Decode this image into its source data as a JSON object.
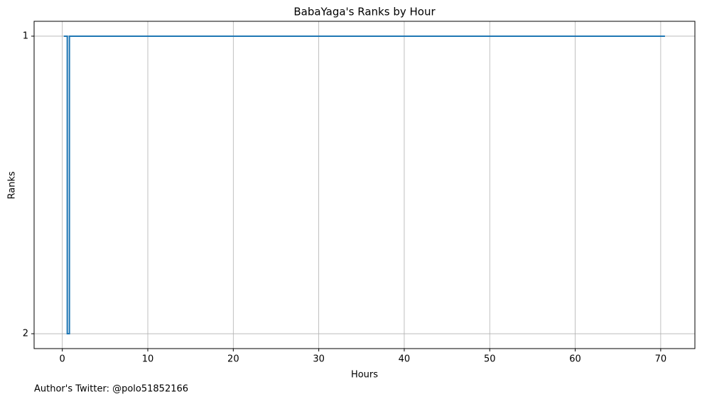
{
  "chart_data": {
    "type": "line",
    "title": "BabaYaga's Ranks by Hour",
    "x_label": "Hours",
    "y_label": "Ranks",
    "footnote": "Author's Twitter: @polo51852166",
    "x": [
      0.17,
      0.58,
      0.58,
      0.83,
      0.83,
      70.5
    ],
    "series": [
      {
        "name": "BabaYaga",
        "color": "#1f77b4",
        "values": [
          1,
          1,
          2,
          2,
          1,
          1
        ]
      }
    ],
    "xlim": [
      -3.3,
      74
    ],
    "xticks": [
      0,
      10,
      20,
      30,
      40,
      50,
      60,
      70
    ],
    "ylim": [
      2.05,
      0.95
    ],
    "yticks": [
      1,
      2
    ],
    "y_inverted": true,
    "grid": true
  }
}
